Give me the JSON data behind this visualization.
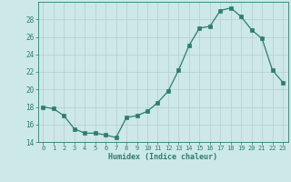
{
  "x": [
    0,
    1,
    2,
    3,
    4,
    5,
    6,
    7,
    8,
    9,
    10,
    11,
    12,
    13,
    14,
    15,
    16,
    17,
    18,
    19,
    20,
    21,
    22,
    23
  ],
  "y": [
    18.0,
    17.8,
    17.0,
    15.5,
    15.0,
    15.0,
    14.8,
    14.5,
    16.8,
    17.0,
    17.5,
    18.5,
    19.8,
    22.2,
    25.0,
    27.0,
    27.2,
    29.0,
    29.3,
    28.3,
    26.8,
    25.8,
    22.2,
    20.8
  ],
  "xlabel": "Humidex (Indice chaleur)",
  "ylim": [
    14,
    30
  ],
  "yticks": [
    14,
    16,
    18,
    20,
    22,
    24,
    26,
    28
  ],
  "xticks": [
    0,
    1,
    2,
    3,
    4,
    5,
    6,
    7,
    8,
    9,
    10,
    11,
    12,
    13,
    14,
    15,
    16,
    17,
    18,
    19,
    20,
    21,
    22,
    23
  ],
  "line_color": "#2e7d6e",
  "marker_color": "#2e7d6e",
  "bg_color": "#cce8e8",
  "grid_color": "#b8cccc",
  "tick_color": "#2e7d6e"
}
